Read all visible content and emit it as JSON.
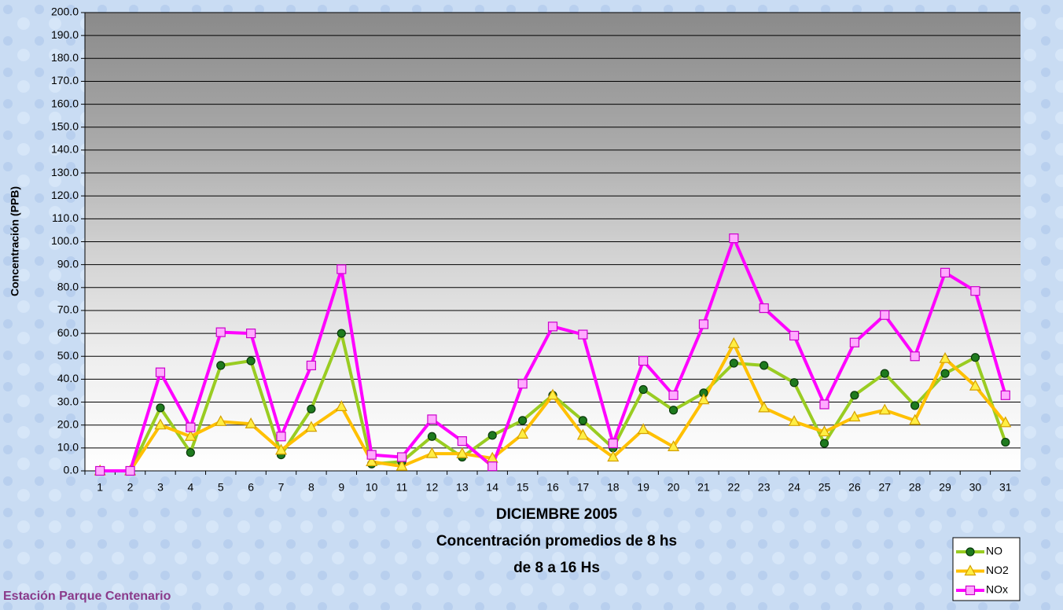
{
  "chart_data": {
    "type": "line",
    "ylabel": "Concentración (PPB)",
    "xlabel_lines": [
      "DICIEMBRE 2005",
      "Concentración promedios de 8 hs",
      "de 8 a 16 Hs"
    ],
    "footer": "Estación Parque Centenario",
    "categories": [
      "1",
      "2",
      "3",
      "4",
      "5",
      "6",
      "7",
      "8",
      "9",
      "10",
      "11",
      "12",
      "13",
      "14",
      "15",
      "16",
      "17",
      "18",
      "19",
      "20",
      "21",
      "22",
      "23",
      "24",
      "25",
      "26",
      "27",
      "28",
      "29",
      "30",
      "31"
    ],
    "ylim": [
      0,
      200
    ],
    "yticks": [
      {
        "value": 0,
        "label": "0.0"
      },
      {
        "value": 10,
        "label": "10.0"
      },
      {
        "value": 20,
        "label": "20.0"
      },
      {
        "value": 30,
        "label": "30.0"
      },
      {
        "value": 40,
        "label": "40.0"
      },
      {
        "value": 50,
        "label": "50.0"
      },
      {
        "value": 60,
        "label": "60.0"
      },
      {
        "value": 70,
        "label": "70.0"
      },
      {
        "value": 80,
        "label": "80.0"
      },
      {
        "value": 90,
        "label": "90.0"
      },
      {
        "value": 100,
        "label": "100.0"
      },
      {
        "value": 110,
        "label": "110.0"
      },
      {
        "value": 120,
        "label": "120.0"
      },
      {
        "value": 130,
        "label": "130.0"
      },
      {
        "value": 140,
        "label": "140.0"
      },
      {
        "value": 150,
        "label": "150.0"
      },
      {
        "value": 160,
        "label": "160.0"
      },
      {
        "value": 170,
        "label": "170.0"
      },
      {
        "value": 180,
        "label": "180.0"
      },
      {
        "value": 190,
        "label": "190.0"
      },
      {
        "value": 200,
        "label": "200.0"
      }
    ],
    "grid": true,
    "legend": "bottom-right",
    "series": [
      {
        "name": "NO",
        "color": "#99cc22",
        "marker": "circle",
        "marker_color": "#1e7a1e",
        "values": [
          0,
          0,
          27.5,
          8,
          46,
          48,
          7,
          27,
          60,
          3,
          4,
          15,
          6,
          15.5,
          22,
          33,
          22,
          10,
          35.5,
          26.5,
          34,
          47,
          46,
          38.5,
          12,
          33,
          42.5,
          28.5,
          42.5,
          49.5,
          12.5
        ]
      },
      {
        "name": "NO2",
        "color": "#ffc000",
        "marker": "triangle",
        "marker_color": "#ffee44",
        "values": [
          0,
          0,
          20,
          15,
          21.5,
          20.5,
          9,
          19,
          28,
          4,
          2,
          7.5,
          7.5,
          5.5,
          16,
          33,
          15.5,
          6,
          18,
          10.5,
          31,
          55.5,
          27.5,
          21.5,
          17,
          23.5,
          26.5,
          22,
          49,
          37,
          21
        ]
      },
      {
        "name": "NOx",
        "color": "#ff00ff",
        "marker": "square",
        "marker_color": "#ffaaff",
        "values": [
          0,
          0,
          43,
          19,
          60.5,
          60,
          15,
          46,
          88,
          7,
          6,
          22.5,
          13,
          2,
          38,
          63,
          59.5,
          12,
          48,
          33,
          64,
          101.5,
          71,
          59,
          29,
          56,
          68,
          50,
          86.5,
          78.5,
          33
        ]
      }
    ]
  }
}
